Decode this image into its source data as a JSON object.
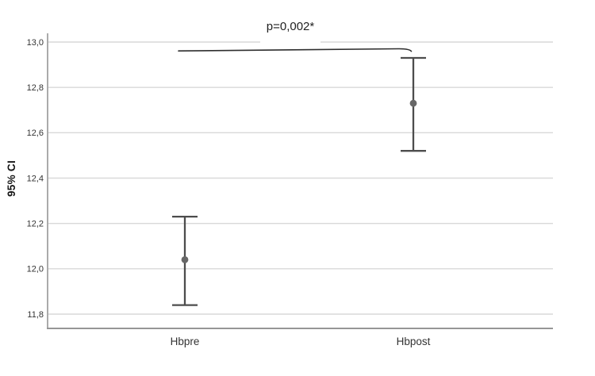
{
  "figure": {
    "background": "#ffffff"
  },
  "chart_data": {
    "type": "errorbar",
    "title": "",
    "categories": [
      "Hbpre",
      "Hbpost"
    ],
    "series": [
      {
        "name": "95% CI",
        "means": [
          12.04,
          12.73
        ],
        "ci_low": [
          11.84,
          12.52
        ],
        "ci_high": [
          12.23,
          12.93
        ]
      }
    ],
    "xlabel": "",
    "ylabel": "95% CI",
    "ylim": [
      11.7,
      13.05
    ],
    "yticks": [
      11.8,
      12.0,
      12.2,
      12.4,
      12.6,
      12.8,
      13.0
    ],
    "ytick_labels": [
      "11,8",
      "12,0",
      "12,2",
      "12,4",
      "12,6",
      "12,8",
      "13,0"
    ],
    "decimal_separator": ",",
    "grid": "horizontal",
    "legend": "none",
    "annotation": "p=0,002*",
    "annotation_note": "significance bracket between Hbpre and Hbpost",
    "colors": {
      "error_bar": "#4d4d4d",
      "mean_dot": "#676767",
      "gridline": "#d9d9d9",
      "axis": "#969696",
      "tick_label": "#333333",
      "sig_line": "#2e2e2e"
    }
  }
}
